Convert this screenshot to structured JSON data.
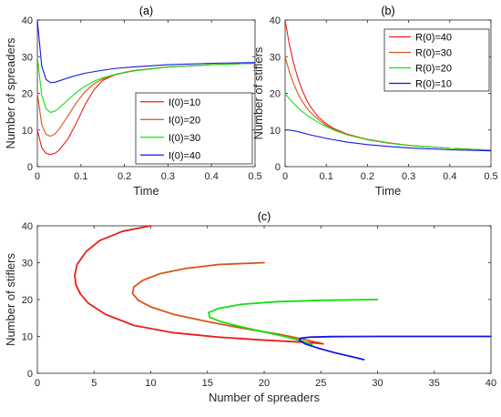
{
  "chart_data": [
    {
      "type": "line",
      "title": "(a)",
      "xlabel": "Time",
      "ylabel": "Number of spreaders",
      "xlim": [
        0,
        0.5
      ],
      "ylim": [
        0,
        40
      ],
      "xticks": [
        0,
        0.1,
        0.2,
        0.3,
        0.4,
        0.5
      ],
      "xtick_labels": [
        "0",
        "0.1",
        "0.2",
        "0.3",
        "0.4",
        "0.5"
      ],
      "yticks": [
        0,
        10,
        20,
        30,
        40
      ],
      "ytick_labels": [
        "0",
        "10",
        "20",
        "30",
        "40"
      ],
      "legend_position": "lower-right",
      "grid": false,
      "series": [
        {
          "name": "I(0)=10",
          "color": "#ee1c1c",
          "x": [
            0,
            0.01,
            0.02,
            0.03,
            0.04,
            0.05,
            0.07,
            0.09,
            0.11,
            0.13,
            0.15,
            0.18,
            0.22,
            0.3,
            0.4,
            0.5
          ],
          "y": [
            10,
            5.2,
            3.6,
            3.3,
            3.6,
            4.5,
            7.5,
            12.0,
            17.0,
            21.0,
            23.5,
            25.2,
            26.2,
            27.2,
            27.8,
            28.2
          ]
        },
        {
          "name": "I(0)=20",
          "color": "#d95319",
          "x": [
            0,
            0.01,
            0.02,
            0.03,
            0.04,
            0.05,
            0.07,
            0.09,
            0.11,
            0.13,
            0.15,
            0.18,
            0.22,
            0.3,
            0.4,
            0.5
          ],
          "y": [
            20,
            11.5,
            8.8,
            8.3,
            8.9,
            10.2,
            13.8,
            17.5,
            20.5,
            22.6,
            23.9,
            25.1,
            26.1,
            27.2,
            27.8,
            28.2
          ]
        },
        {
          "name": "I(0)=30",
          "color": "#11e011",
          "x": [
            0,
            0.01,
            0.02,
            0.03,
            0.04,
            0.05,
            0.07,
            0.09,
            0.11,
            0.13,
            0.15,
            0.18,
            0.22,
            0.3,
            0.4,
            0.5
          ],
          "y": [
            30,
            19.5,
            15.8,
            14.8,
            15.1,
            16.0,
            18.2,
            20.3,
            22.0,
            23.3,
            24.2,
            25.2,
            26.1,
            27.2,
            27.8,
            28.2
          ]
        },
        {
          "name": "I(0)=40",
          "color": "#1515e6",
          "x": [
            0,
            0.01,
            0.02,
            0.03,
            0.04,
            0.05,
            0.07,
            0.09,
            0.11,
            0.13,
            0.15,
            0.18,
            0.22,
            0.3,
            0.4,
            0.5
          ],
          "y": [
            40,
            27.5,
            23.8,
            22.9,
            23.0,
            23.4,
            24.2,
            24.9,
            25.5,
            25.9,
            26.3,
            26.8,
            27.2,
            27.8,
            28.2,
            28.4
          ]
        }
      ]
    },
    {
      "type": "line",
      "title": "(b)",
      "xlabel": "Time",
      "ylabel": "Number of stiflers",
      "xlim": [
        0,
        0.5
      ],
      "ylim": [
        0,
        40
      ],
      "xticks": [
        0,
        0.1,
        0.2,
        0.3,
        0.4,
        0.5
      ],
      "xtick_labels": [
        "0",
        "0.1",
        "0.2",
        "0.3",
        "0.4",
        "0.5"
      ],
      "yticks": [
        0,
        10,
        20,
        30,
        40
      ],
      "ytick_labels": [
        "0",
        "10",
        "20",
        "30",
        "40"
      ],
      "legend_position": "top-right",
      "grid": false,
      "series": [
        {
          "name": "R(0)=40",
          "color": "#ee1c1c",
          "x": [
            0,
            0.01,
            0.02,
            0.03,
            0.04,
            0.05,
            0.06,
            0.08,
            0.1,
            0.12,
            0.15,
            0.2,
            0.25,
            0.3,
            0.4,
            0.5
          ],
          "y": [
            40,
            33.5,
            28.5,
            24.5,
            21.3,
            18.7,
            16.6,
            13.6,
            11.7,
            10.3,
            8.9,
            7.4,
            6.5,
            5.8,
            5.0,
            4.5
          ]
        },
        {
          "name": "R(0)=30",
          "color": "#d95319",
          "x": [
            0,
            0.01,
            0.02,
            0.03,
            0.04,
            0.05,
            0.06,
            0.08,
            0.1,
            0.12,
            0.15,
            0.2,
            0.25,
            0.3,
            0.4,
            0.5
          ],
          "y": [
            30,
            26.0,
            22.8,
            20.2,
            18.1,
            16.4,
            15.0,
            12.9,
            11.3,
            10.1,
            8.8,
            7.4,
            6.5,
            5.8,
            5.0,
            4.5
          ]
        },
        {
          "name": "R(0)=20",
          "color": "#11e011",
          "x": [
            0,
            0.01,
            0.02,
            0.03,
            0.04,
            0.05,
            0.06,
            0.08,
            0.1,
            0.12,
            0.15,
            0.2,
            0.25,
            0.3,
            0.4,
            0.5
          ],
          "y": [
            20,
            18.6,
            17.3,
            16.2,
            15.2,
            14.3,
            13.5,
            12.1,
            10.9,
            9.9,
            8.7,
            7.3,
            6.4,
            5.8,
            5.0,
            4.5
          ]
        },
        {
          "name": "R(0)=10",
          "color": "#1515e6",
          "x": [
            0,
            0.01,
            0.02,
            0.03,
            0.04,
            0.05,
            0.06,
            0.08,
            0.1,
            0.12,
            0.15,
            0.2,
            0.25,
            0.3,
            0.4,
            0.5
          ],
          "y": [
            10,
            10.0,
            9.8,
            9.6,
            9.3,
            9.0,
            8.7,
            8.2,
            7.7,
            7.3,
            6.7,
            6.0,
            5.5,
            5.1,
            4.6,
            4.3
          ]
        }
      ]
    },
    {
      "type": "line",
      "title": "(c)",
      "xlabel": "Number of spreaders",
      "ylabel": "Number of stiflers",
      "xlim": [
        0,
        40
      ],
      "ylim": [
        0,
        40
      ],
      "xticks": [
        0,
        5,
        10,
        15,
        20,
        25,
        30,
        35,
        40
      ],
      "xtick_labels": [
        "0",
        "5",
        "10",
        "15",
        "20",
        "25",
        "30",
        "35",
        "40"
      ],
      "yticks": [
        0,
        10,
        20,
        30,
        40
      ],
      "ytick_labels": [
        "0",
        "10",
        "20",
        "30",
        "40"
      ],
      "grid": false,
      "series": [
        {
          "color": "#ee1c1c",
          "x": [
            10,
            7.5,
            5.5,
            4.3,
            3.5,
            3.3,
            3.4,
            3.8,
            4.5,
            6.0,
            8.5,
            12.0,
            16.0,
            20.0,
            23.0,
            24.5,
            25.2
          ],
          "y": [
            40,
            38.5,
            36,
            33,
            29.5,
            26.5,
            24,
            21.5,
            19,
            16,
            13,
            11,
            9.8,
            9.0,
            8.5,
            8.2,
            8.0
          ]
        },
        {
          "color": "#d95319",
          "x": [
            20,
            16,
            13,
            10.8,
            9.3,
            8.5,
            8.4,
            8.9,
            10.0,
            12.0,
            15.0,
            18.5,
            21.5,
            23.5,
            24.5,
            25.0
          ],
          "y": [
            30,
            29.5,
            28.4,
            27,
            25.2,
            23.4,
            21.6,
            19.8,
            18.0,
            16.0,
            14.0,
            12.0,
            10.5,
            9.2,
            8.5,
            8.2
          ]
        },
        {
          "color": "#11e011",
          "x": [
            30,
            25,
            21,
            18,
            16,
            15.1,
            15.2,
            16.2,
            18.0,
            20.0,
            21.8,
            23.0,
            23.8,
            24.2
          ],
          "y": [
            20,
            19.8,
            19.4,
            18.7,
            17.6,
            16.5,
            15.2,
            14.0,
            12.6,
            11.2,
            10.0,
            9.0,
            8.3,
            7.8
          ]
        },
        {
          "color": "#1515e6",
          "x": [
            40,
            35,
            30,
            26,
            24,
            23.2,
            23.1,
            23.6,
            24.8,
            26.2,
            27.6,
            28.8
          ],
          "y": [
            10,
            10,
            10,
            9.95,
            9.8,
            9.5,
            9.0,
            8.0,
            6.8,
            5.6,
            4.6,
            3.7
          ]
        }
      ]
    }
  ]
}
